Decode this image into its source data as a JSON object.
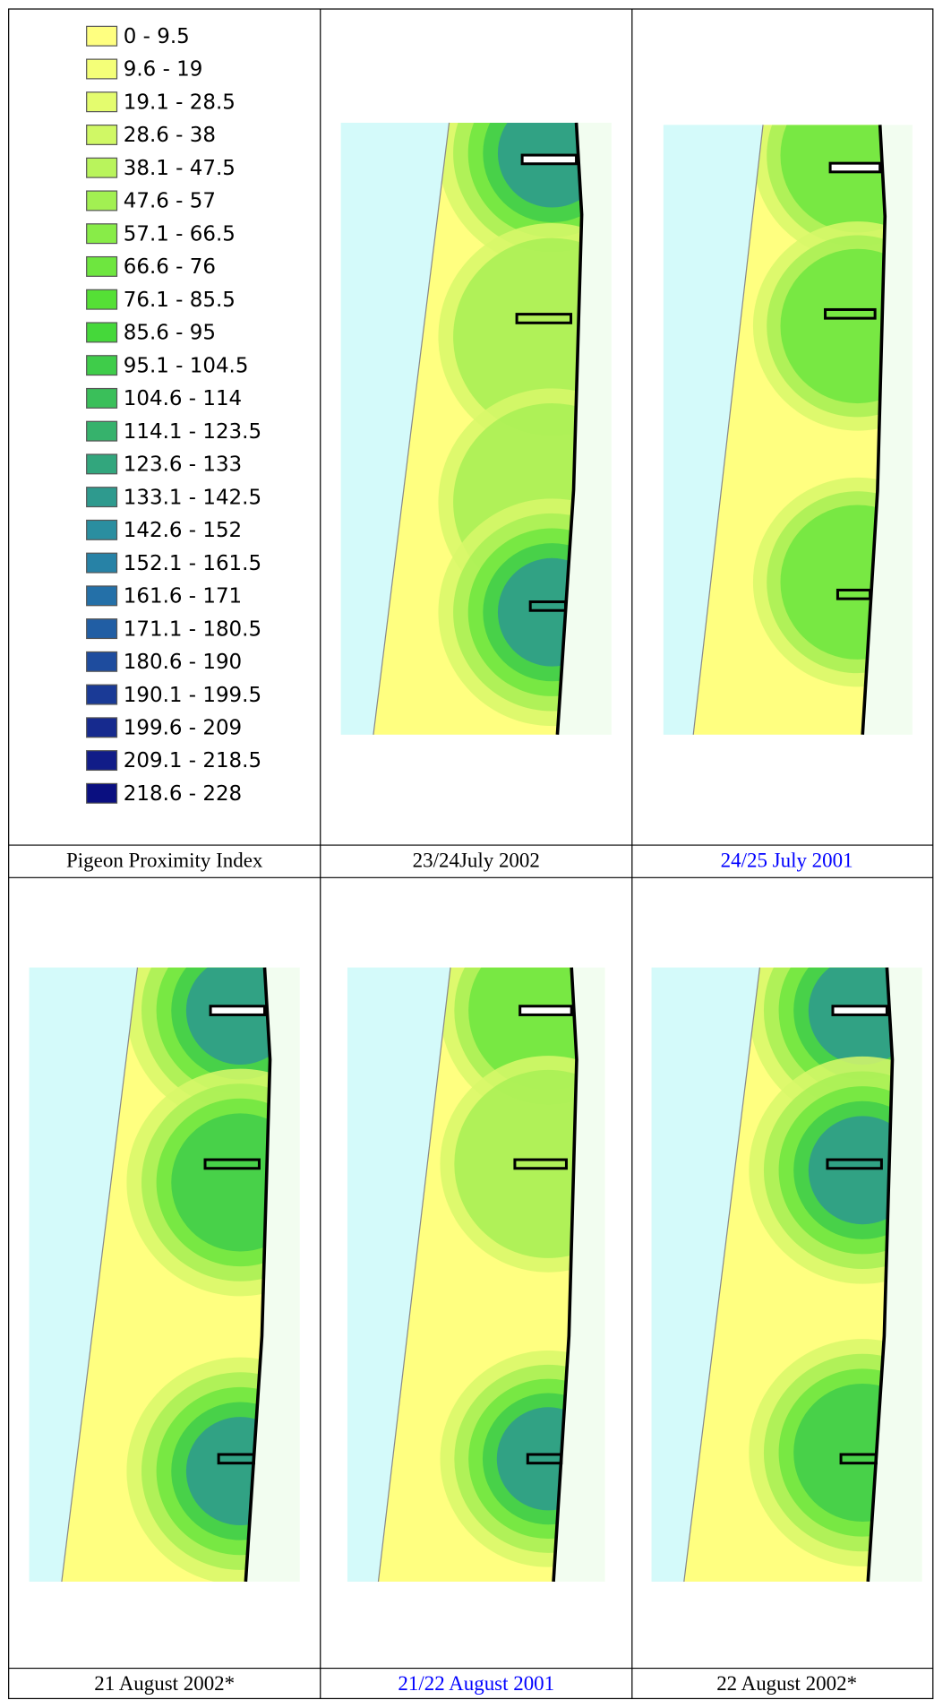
{
  "legend": {
    "items": [
      {
        "label": "0 - 9.5",
        "color": "#ffff80"
      },
      {
        "label": "9.6 - 19",
        "color": "#f4ff78"
      },
      {
        "label": "19.1 - 28.5",
        "color": "#e4fc6e"
      },
      {
        "label": "28.6 - 38",
        "color": "#d0f865"
      },
      {
        "label": "38.1 - 47.5",
        "color": "#b9f45c"
      },
      {
        "label": "47.6 - 57",
        "color": "#a2f052"
      },
      {
        "label": "57.1 - 66.5",
        "color": "#88ec48"
      },
      {
        "label": "66.6 - 76",
        "color": "#6ee63f"
      },
      {
        "label": "76.1 - 85.5",
        "color": "#55e036"
      },
      {
        "label": "85.6 - 95",
        "color": "#45d83a"
      },
      {
        "label": "95.1 - 104.5",
        "color": "#3fcc4a"
      },
      {
        "label": "104.6 - 114",
        "color": "#3abf5a"
      },
      {
        "label": "114.1 - 123.5",
        "color": "#36b26c"
      },
      {
        "label": "123.6 - 133",
        "color": "#32a67d"
      },
      {
        "label": "133.1 - 142.5",
        "color": "#2e9a8e"
      },
      {
        "label": "142.6 - 152",
        "color": "#2a8ea0"
      },
      {
        "label": "152.1 - 161.5",
        "color": "#2782a6"
      },
      {
        "label": "161.6 - 171",
        "color": "#2470a8"
      },
      {
        "label": "171.1 - 180.5",
        "color": "#215ea4"
      },
      {
        "label": "180.6 - 190",
        "color": "#1e4c9e"
      },
      {
        "label": "190.1 - 199.5",
        "color": "#1a3a96"
      },
      {
        "label": "199.6 - 209",
        "color": "#162a8e"
      },
      {
        "label": "209.1 - 218.5",
        "color": "#111c88"
      },
      {
        "label": "218.6 - 228",
        "color": "#0a0f80"
      }
    ]
  },
  "captions": [
    {
      "text": "Pigeon Proximity Index",
      "color": "#000000"
    },
    {
      "text": "23/24July 2002",
      "color": "#000000"
    },
    {
      "text": "24/25 July 2001",
      "color": "#0000ff"
    },
    {
      "text": "21 August 2002*",
      "color": "#000000"
    },
    {
      "text": "21/22 August 2001",
      "color": "#0000ff"
    },
    {
      "text": "22 August 2002*",
      "color": "#000000"
    }
  ]
}
